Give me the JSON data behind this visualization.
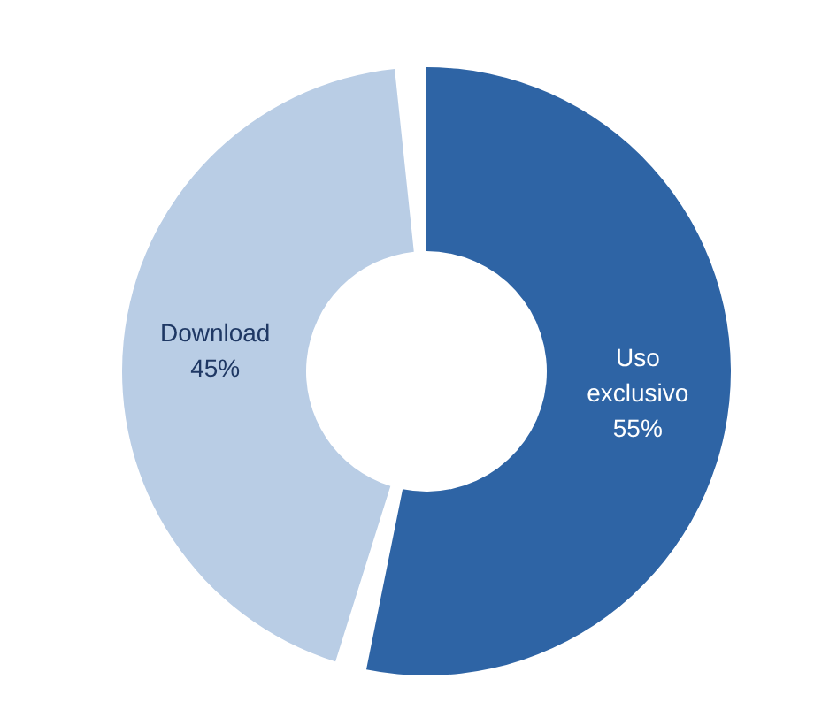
{
  "chart_data": {
    "type": "donut",
    "categories": [
      "Uso exclusivo",
      "Download"
    ],
    "values": [
      55,
      45
    ],
    "colors": [
      "#2e64a5",
      "#b9cde5"
    ],
    "value_labels": [
      "55%",
      "45%"
    ]
  }
}
